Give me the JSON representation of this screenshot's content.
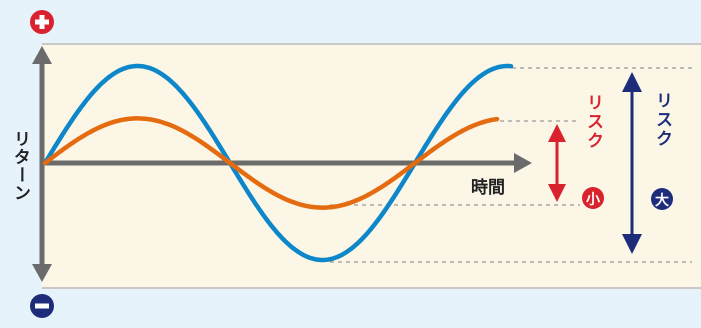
{
  "labels": {
    "y_axis": "リターン",
    "x_axis": "時間",
    "risk_small": "リスク",
    "risk_small_badge": "小",
    "risk_large": "リスク",
    "risk_large_badge": "大"
  },
  "signs": {
    "plus": "+",
    "minus": "−"
  },
  "colors": {
    "background": "#e6f3fb",
    "panel": "#fbf6e6",
    "panel_border": "#c8c8c8",
    "axis": "#6b6b6b",
    "high_risk_curve": "#0d87c9",
    "low_risk_curve": "#e56b10",
    "risk_small_color": "#d8222d",
    "risk_large_color": "#1d2d7a",
    "plus_sign": "#d8222d",
    "minus_sign": "#1d2d7a"
  },
  "chart_data": {
    "type": "line",
    "series": [
      {
        "amplitude": 1.0,
        "color": "#0d87c9"
      },
      {
        "amplitude": 0.46,
        "color": "#e56b10"
      }
    ]
  }
}
